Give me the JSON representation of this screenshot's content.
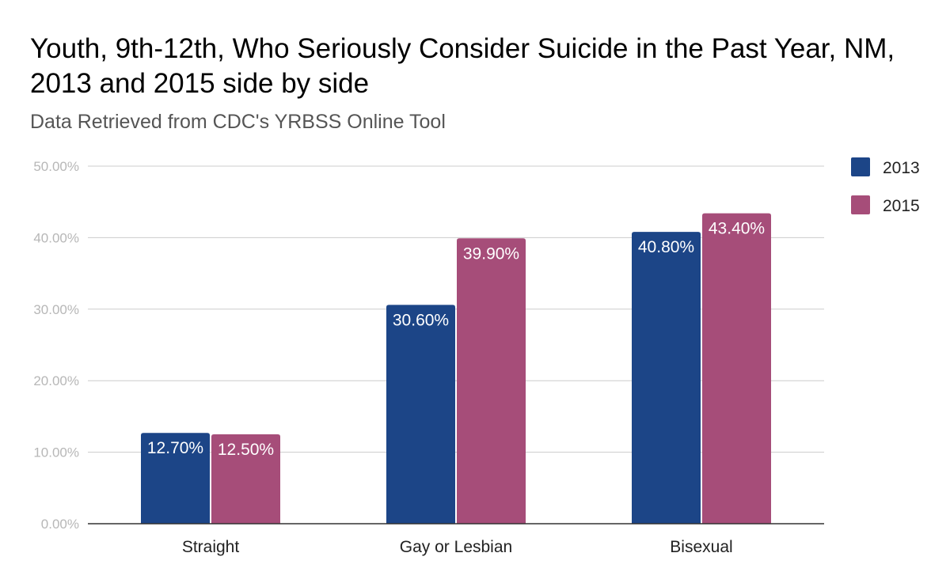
{
  "chart_data": {
    "type": "bar",
    "title": "Youth, 9th-12th, Who Seriously Consider Suicide in the Past Year, NM, 2013 and 2015 side by side",
    "subtitle": "Data Retrieved from CDC's YRBSS Online Tool",
    "categories": [
      "Straight",
      "Gay or Lesbian",
      "Bisexual"
    ],
    "series": [
      {
        "name": "2013",
        "color": "#1c4587",
        "values": [
          12.7,
          30.6,
          40.8
        ],
        "labels": [
          "12.70%",
          "30.60%",
          "40.80%"
        ]
      },
      {
        "name": "2015",
        "color": "#a64d79",
        "values": [
          12.5,
          39.9,
          43.4
        ],
        "labels": [
          "12.50%",
          "39.90%",
          "43.40%"
        ]
      }
    ],
    "ylim": [
      0,
      50
    ],
    "yticks": [
      "0.00%",
      "10.00%",
      "20.00%",
      "30.00%",
      "40.00%",
      "50.00%"
    ],
    "xlabel": "",
    "ylabel": "",
    "grid": true,
    "legend_position": "right"
  }
}
